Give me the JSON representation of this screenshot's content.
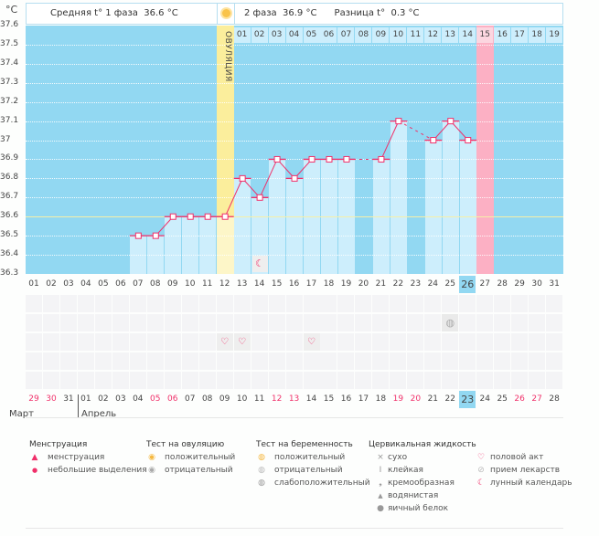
{
  "unit": "°C",
  "header": {
    "phase1": "Средняя t° 1 фаза",
    "phase1_value": "36.6 °C",
    "phase2": "2 фаза",
    "phase2_value": "36.9 °C",
    "diff": "Разница t°",
    "diff_value": "0.3 °C"
  },
  "ovulation_label": "ОВУЛЯЦИЯ",
  "y_ticks": [
    "37.6",
    "37.5",
    "37.4",
    "37.3",
    "37.2",
    "37.1",
    "37",
    "36.9",
    "36.8",
    "36.7",
    "36.6",
    "36.5",
    "36.4",
    "36.3"
  ],
  "cycle_days": [
    "01",
    "02",
    "03",
    "04",
    "05",
    "06",
    "07",
    "08",
    "09",
    "10",
    "11",
    "12",
    "13",
    "14",
    "15",
    "16",
    "17",
    "18",
    "19",
    "20",
    "21",
    "22",
    "23",
    "24",
    "25",
    "26",
    "27",
    "28",
    "29",
    "30",
    "31"
  ],
  "phase2_days": [
    "01",
    "02",
    "03",
    "04",
    "05",
    "06",
    "07",
    "08",
    "09",
    "10",
    "11",
    "12",
    "13",
    "14",
    "15",
    "16",
    "17",
    "18",
    "19"
  ],
  "current_cycle_day": 26,
  "ovulation_day": 12,
  "expected_period_day": 27,
  "temperatures": [
    null,
    null,
    null,
    null,
    null,
    null,
    36.5,
    36.5,
    36.6,
    36.6,
    36.6,
    36.6,
    36.8,
    36.7,
    36.9,
    36.8,
    36.9,
    36.9,
    36.9,
    null,
    36.9,
    37.1,
    null,
    37.0,
    37.1,
    37.0,
    null,
    null,
    null,
    null,
    null
  ],
  "coverline": 36.6,
  "calendar_dates": [
    {
      "d": "29",
      "red": true
    },
    {
      "d": "30",
      "red": true
    },
    {
      "d": "31",
      "red": false
    },
    {
      "d": "01",
      "red": false
    },
    {
      "d": "02",
      "red": false
    },
    {
      "d": "03",
      "red": false
    },
    {
      "d": "04",
      "red": false
    },
    {
      "d": "05",
      "red": true
    },
    {
      "d": "06",
      "red": true
    },
    {
      "d": "07",
      "red": false
    },
    {
      "d": "08",
      "red": false
    },
    {
      "d": "09",
      "red": false
    },
    {
      "d": "10",
      "red": false
    },
    {
      "d": "11",
      "red": false
    },
    {
      "d": "12",
      "red": true
    },
    {
      "d": "13",
      "red": true
    },
    {
      "d": "14",
      "red": false
    },
    {
      "d": "15",
      "red": false
    },
    {
      "d": "16",
      "red": false
    },
    {
      "d": "17",
      "red": false
    },
    {
      "d": "18",
      "red": false
    },
    {
      "d": "19",
      "red": true
    },
    {
      "d": "20",
      "red": true
    },
    {
      "d": "21",
      "red": false
    },
    {
      "d": "22",
      "red": false
    },
    {
      "d": "23",
      "red": false
    },
    {
      "d": "24",
      "red": false
    },
    {
      "d": "25",
      "red": false
    },
    {
      "d": "26",
      "red": true
    },
    {
      "d": "27",
      "red": true
    },
    {
      "d": "28",
      "red": false
    }
  ],
  "months": [
    "Март",
    "Апрель"
  ],
  "markers": {
    "moon_day": 14,
    "pill_day": 25,
    "intercourse_days": [
      12,
      13,
      17
    ]
  },
  "colors": {
    "sky": "#92d8f2",
    "bar": "#cdeefc",
    "ovulation": "#fbee9c",
    "period": "#fcb0c4",
    "line": "#f0306a",
    "today": "#92d8f2"
  },
  "legend": {
    "menstruation": {
      "title": "Менструация",
      "items": [
        "менструация",
        "небольшие выделения"
      ]
    },
    "ovulation_test": {
      "title": "Тест на овуляцию",
      "items": [
        "положительный",
        "отрицательный"
      ]
    },
    "pregnancy_test": {
      "title": "Тест на беременность",
      "items": [
        "положительный",
        "отрицательный",
        "слабоположительный"
      ]
    },
    "cervical": {
      "title": "Цервикальная жидкость",
      "items": [
        "сухо",
        "клейкая",
        "кремообразная",
        "водянистая",
        "яичный белок"
      ]
    },
    "other": {
      "items": [
        "половой акт",
        "прием лекарств",
        "лунный календарь"
      ]
    }
  }
}
